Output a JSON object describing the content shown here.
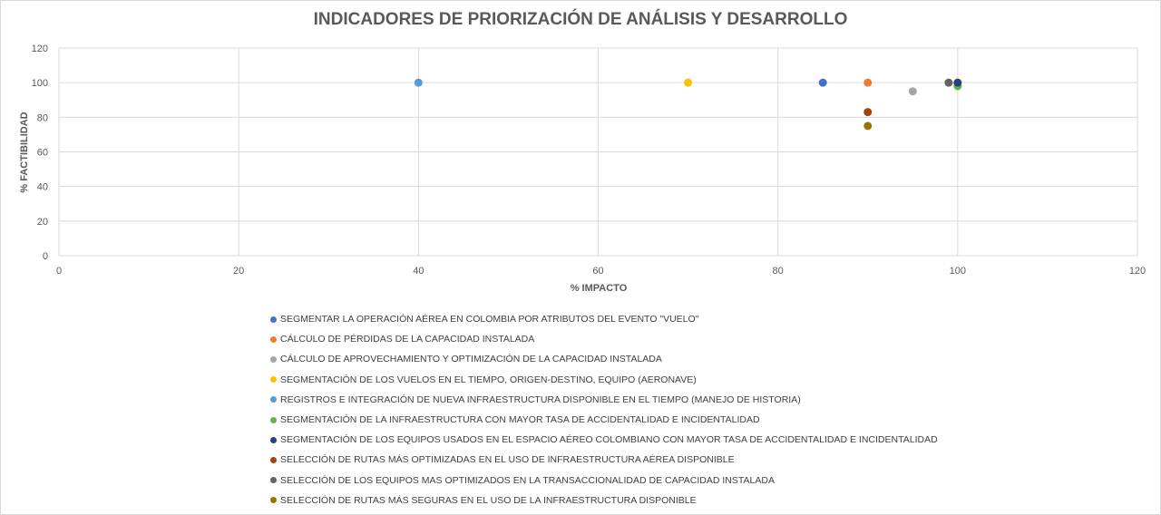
{
  "chart_data": {
    "type": "scatter",
    "title": "INDICADORES DE PRIORIZACIÓN DE ANÁLISIS Y DESARROLLO",
    "xlabel": "% IMPACTO",
    "ylabel": "% FACTIBILIDAD",
    "xlim": [
      0,
      120
    ],
    "ylim": [
      0,
      120
    ],
    "xticks": [
      "0",
      "20",
      "40",
      "60",
      "80",
      "100",
      "120"
    ],
    "yticks": [
      "0",
      "20",
      "40",
      "60",
      "80",
      "100",
      "120"
    ],
    "grid": true,
    "legend_position": "bottom",
    "series": [
      {
        "name": "SEGMENTAR LA OPERACIÓN AÉREA EN COLOMBIA POR ATRIBUTOS DEL EVENTO \"VUELO\"",
        "color": "#4472C4",
        "x": 85,
        "y": 100
      },
      {
        "name": "CÁLCULO DE PÉRDIDAS DE LA CAPACIDAD INSTALADA",
        "color": "#ED7D31",
        "x": 90,
        "y": 100
      },
      {
        "name": "CÁLCULO DE APROVECHAMIENTO Y OPTIMIZACIÓN DE LA CAPACIDAD INSTALADA",
        "color": "#A5A5A5",
        "x": 95,
        "y": 95
      },
      {
        "name": "SEGMENTACIÓN DE LOS VUELOS EN EL TIEMPO, ORIGEN-DESTINO, EQUIPO (AERONAVE)",
        "color": "#FFC000",
        "x": 70,
        "y": 100
      },
      {
        "name": "REGISTROS E INTEGRACIÓN DE NUEVA INFRAESTRUCTURA DISPONIBLE EN EL TIEMPO (MANEJO DE HISTORIA)",
        "color": "#5B9BD5",
        "x": 40,
        "y": 100
      },
      {
        "name": "SEGMENTACIÓN DE LA INFRAESTRUCTURA CON MAYOR TASA DE ACCIDENTALIDAD E INCIDENTALIDAD",
        "color": "#70AD47",
        "x": 100,
        "y": 98
      },
      {
        "name": "SEGMENTACIÓN DE LOS EQUIPOS USADOS EN EL ESPACIO AÉREO COLOMBIANO CON MAYOR TASA DE ACCIDENTALIDAD E INCIDENTALIDAD",
        "color": "#264478",
        "x": 100,
        "y": 100
      },
      {
        "name": "SELECCIÓN DE RUTAS MÁS OPTIMIZADAS EN EL USO DE INFRAESTRUCTURA AÉREA DISPONIBLE",
        "color": "#9E480E",
        "x": 90,
        "y": 83
      },
      {
        "name": "SELECCIÓN DE LOS EQUIPOS MAS OPTIMIZADOS EN LA TRANSACCIONALIDAD DE CAPACIDAD INSTALADA",
        "color": "#636363",
        "x": 99,
        "y": 100
      },
      {
        "name": "SELECCIÓN DE RUTAS MÁS SEGURAS EN EL USO DE LA INFRAESTRUCTURA DISPONIBLE",
        "color": "#997300",
        "x": 90,
        "y": 75
      }
    ]
  }
}
